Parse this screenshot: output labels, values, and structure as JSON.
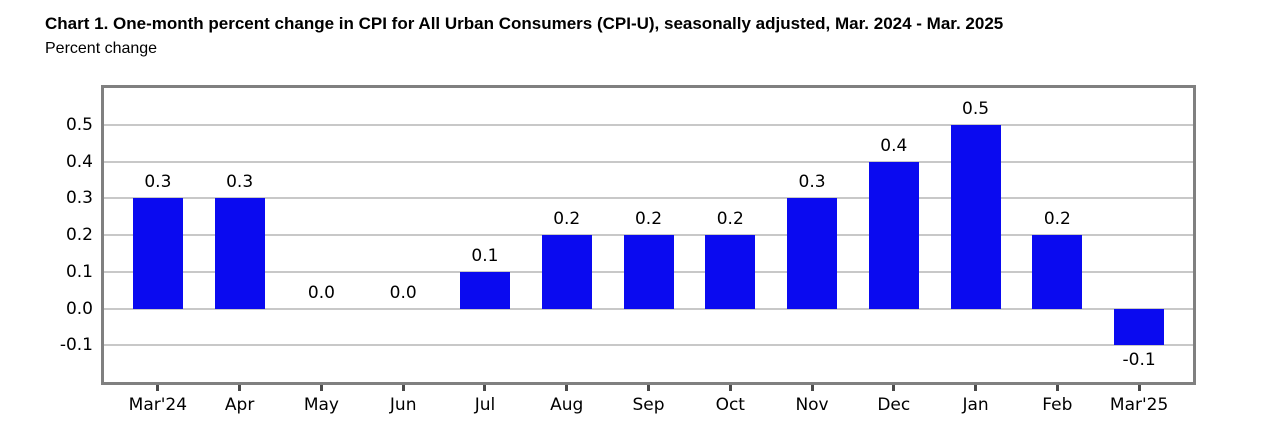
{
  "header": {
    "title": "Chart 1. One-month percent change in CPI for All Urban Consumers (CPI-U), seasonally adjusted, Mar. 2024 - Mar. 2025",
    "subtitle": "Percent change"
  },
  "chart_data": {
    "type": "bar",
    "title": "Chart 1. One-month percent change in CPI for All Urban Consumers (CPI-U), seasonally adjusted, Mar. 2024 - Mar. 2025",
    "xlabel": "",
    "ylabel": "Percent change",
    "categories": [
      "Mar'24",
      "Apr",
      "May",
      "Jun",
      "Jul",
      "Aug",
      "Sep",
      "Oct",
      "Nov",
      "Dec",
      "Jan",
      "Feb",
      "Mar'25"
    ],
    "values": [
      0.3,
      0.3,
      0.0,
      0.0,
      0.1,
      0.2,
      0.2,
      0.2,
      0.3,
      0.4,
      0.5,
      0.2,
      -0.1
    ],
    "value_labels": [
      "0.3",
      "0.3",
      "0.0",
      "0.0",
      "0.1",
      "0.2",
      "0.2",
      "0.2",
      "0.3",
      "0.4",
      "0.5",
      "0.2",
      "-0.1"
    ],
    "ylim": [
      -0.2,
      0.6
    ],
    "yticks": [
      0.5,
      0.4,
      0.3,
      0.2,
      0.1,
      0.0,
      -0.1
    ],
    "ytick_labels": [
      "0.5",
      "0.4",
      "0.3",
      "0.2",
      "0.1",
      "0.0",
      "-0.1"
    ],
    "grid": true,
    "legend": false,
    "colors": {
      "bar": "#0a0af0",
      "grid": "#c8c8c8",
      "plot_border": "#808080",
      "tick_mark": "#4a4a4a",
      "text": "#000000",
      "background": "#ffffff"
    }
  }
}
